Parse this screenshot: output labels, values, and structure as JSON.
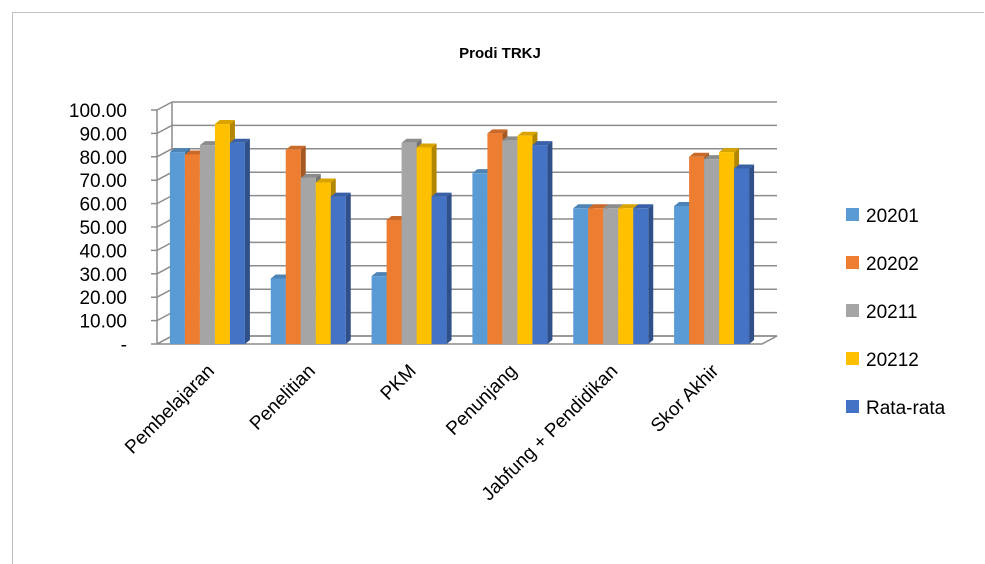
{
  "chart_data": {
    "type": "bar",
    "title": "Prodi TRKJ",
    "categories": [
      "Pembelajaran",
      "Penelitian",
      "PKM",
      "Penunjang",
      "Jabfung + Pendidikan",
      "Skor Akhir"
    ],
    "series": [
      {
        "name": "20201",
        "color": "#5B9BD5",
        "values": [
          82,
          28,
          29,
          73,
          58,
          59
        ]
      },
      {
        "name": "20202",
        "color": "#ED7D31",
        "values": [
          81,
          83,
          53,
          90,
          58,
          80
        ]
      },
      {
        "name": "20211",
        "color": "#A5A5A5",
        "values": [
          85,
          71,
          86,
          87,
          58,
          79
        ]
      },
      {
        "name": "20212",
        "color": "#FFC000",
        "values": [
          94,
          69,
          84,
          89,
          58,
          82
        ]
      },
      {
        "name": "Rata-rata",
        "color": "#4472C4",
        "values": [
          86,
          63,
          63,
          85,
          58,
          75
        ]
      }
    ],
    "y_ticks": [
      "-",
      "10.00",
      "20.00",
      "30.00",
      "40.00",
      "50.00",
      "60.00",
      "70.00",
      "80.00",
      "90.00",
      "100.00"
    ],
    "ylim": [
      0,
      100
    ],
    "grid": true,
    "legend_position": "right"
  }
}
